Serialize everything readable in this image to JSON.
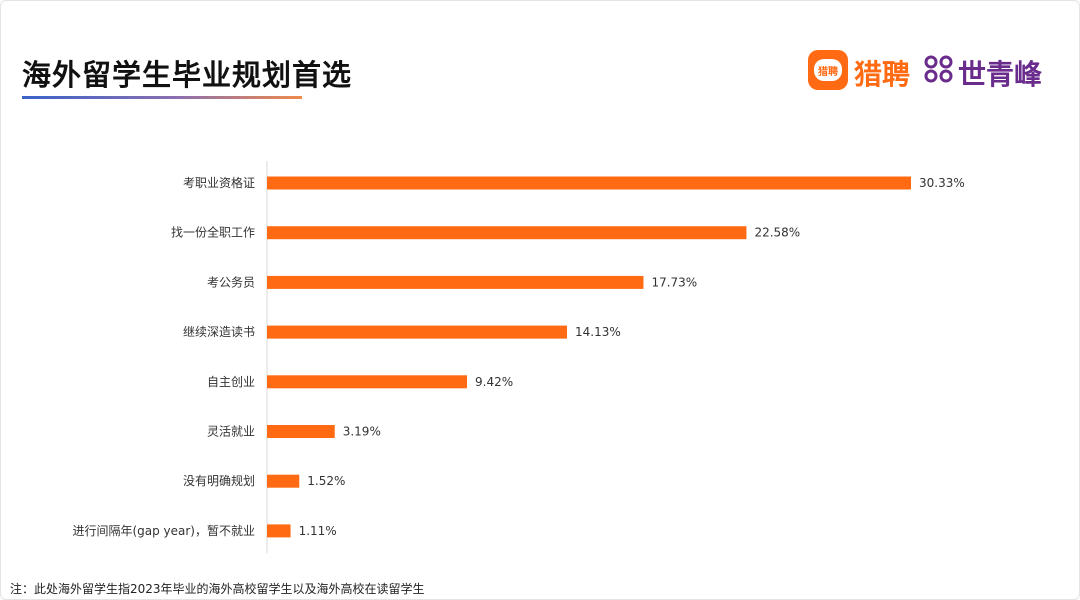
{
  "header": {
    "title": "海外留学生毕业规划首选",
    "logo_box_text": "猎聘",
    "brand_liepin": "猎聘",
    "brand_shiqingfeng": "世青峰"
  },
  "colors": {
    "bar": "#FF6A13",
    "brand_orange": "#FF6A13",
    "brand_purple": "#6A2C8C"
  },
  "chart_data": {
    "type": "bar",
    "orientation": "horizontal",
    "title": "海外留学生毕业规划首选",
    "categories": [
      "考职业资格证",
      "找一份全职工作",
      "考公务员",
      "继续深造读书",
      "自主创业",
      "灵活就业",
      "没有明确规划",
      "进行间隔年(gap year)，暂不就业"
    ],
    "values": [
      30.33,
      22.58,
      17.73,
      14.13,
      9.42,
      3.19,
      1.52,
      1.11
    ],
    "value_labels": [
      "30.33%",
      "22.58%",
      "17.73%",
      "14.13%",
      "9.42%",
      "3.19%",
      "1.52%",
      "1.11%"
    ],
    "xlim": [
      0,
      30.33
    ],
    "grid": false,
    "legend": "none"
  },
  "footnote": "注：此处海外留学生指2023年毕业的海外高校留学生以及海外高校在读留学生"
}
